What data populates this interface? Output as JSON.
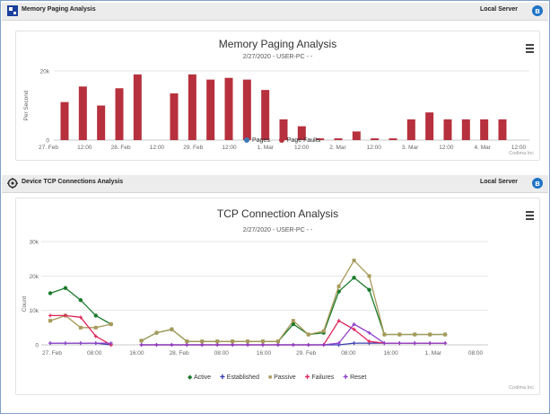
{
  "panels": [
    {
      "title": "Memory Paging Analysis",
      "server": "Local Server",
      "icon": "memory-chip-icon"
    },
    {
      "title": "Device TCP Connections Analysis",
      "server": "Local Server",
      "icon": "gear-icon"
    }
  ],
  "chart1": {
    "credit": "Codima Inc",
    "menu_icon": "hamburger-menu-icon",
    "chart_data": {
      "type": "bar",
      "title": "Memory Paging Analysis",
      "subtitle": "2/27/2020 - USER-PC - -",
      "ylabel": "Per Second",
      "ylim": [
        0,
        20000
      ],
      "yticks": [
        "0",
        "20k"
      ],
      "xticks": [
        "27. Feb",
        "12:00",
        "28. Feb",
        "12:00",
        "29. Feb",
        "12:00",
        "1. Mar",
        "12:00",
        "2. Mar",
        "12:00",
        "3. Mar",
        "12:00",
        "4. Mar",
        "12:00"
      ],
      "legend": [
        {
          "name": "Pages",
          "color": "#3d7ab3"
        },
        {
          "name": "Page Faults",
          "color": "#b7303d"
        }
      ],
      "series": [
        {
          "name": "Page Faults",
          "color": "#b7303d",
          "values": [
            11000,
            15500,
            10000,
            15000,
            19000,
            0,
            13500,
            19000,
            17500,
            18000,
            17500,
            14500,
            6000,
            4000,
            500,
            500,
            2500,
            500,
            500,
            6000,
            8000,
            6000,
            6000,
            6000,
            6000
          ]
        }
      ]
    }
  },
  "chart2": {
    "credit": "Codima Inc",
    "menu_icon": "hamburger-menu-icon",
    "chart_data": {
      "type": "line",
      "title": "TCP Connection Analysis",
      "subtitle": "2/27/2020 - USER-PC - -",
      "ylabel": "Count",
      "ylim": [
        0,
        30000
      ],
      "yticks": [
        "0",
        "10k",
        "20k",
        "30k"
      ],
      "xticks": [
        "27. Feb",
        "08:00",
        "16:00",
        "28. Feb",
        "08:00",
        "16:00",
        "29. Feb",
        "08:00",
        "16:00",
        "1. Mar",
        "08:00"
      ],
      "legend": [
        {
          "name": "Active",
          "color": "#1a7a2a"
        },
        {
          "name": "Established",
          "color": "#3a3fb5"
        },
        {
          "name": "Passive",
          "color": "#a89a5a"
        },
        {
          "name": "Failures",
          "color": "#e0245a"
        },
        {
          "name": "Reset",
          "color": "#8e3fc8"
        }
      ],
      "x": [
        0,
        3,
        6,
        9,
        12,
        18,
        21,
        24,
        27,
        30,
        33,
        36,
        39,
        42,
        45,
        48,
        51,
        54,
        57,
        60,
        63,
        66,
        69,
        72,
        75,
        78,
        81,
        84
      ],
      "series": [
        {
          "name": "Active",
          "color": "#1a7a2a",
          "values": [
            15000,
            16500,
            13000,
            8500,
            6000,
            1200,
            3500,
            4500,
            1000,
            1000,
            1000,
            1000,
            1000,
            1000,
            1000,
            6000,
            3000,
            3500,
            15500,
            19500,
            16000,
            3000,
            3000,
            3000,
            3000,
            3000,
            null,
            null
          ]
        },
        {
          "name": "Established",
          "color": "#3a3fb5",
          "values": [
            500,
            500,
            500,
            500,
            0,
            0,
            0,
            0,
            0,
            0,
            0,
            0,
            0,
            0,
            0,
            0,
            0,
            0,
            0,
            500,
            500,
            500,
            500,
            500,
            500,
            500,
            null,
            null
          ]
        },
        {
          "name": "Passive",
          "color": "#a89a5a",
          "values": [
            7000,
            8500,
            5000,
            5000,
            6000,
            1200,
            3500,
            4500,
            1000,
            1000,
            1000,
            1000,
            1000,
            1000,
            1000,
            7000,
            3000,
            4000,
            17000,
            24500,
            20000,
            3000,
            3000,
            3000,
            3000,
            3000,
            null,
            null
          ]
        },
        {
          "name": "Failures",
          "color": "#e0245a",
          "values": [
            8500,
            8500,
            8000,
            2500,
            0,
            0,
            0,
            0,
            0,
            0,
            0,
            0,
            0,
            0,
            0,
            0,
            0,
            0,
            7000,
            4500,
            1000,
            500,
            500,
            500,
            500,
            500,
            null,
            null
          ]
        },
        {
          "name": "Reset",
          "color": "#8e3fc8",
          "values": [
            500,
            500,
            500,
            500,
            500,
            0,
            0,
            0,
            0,
            0,
            0,
            0,
            0,
            0,
            0,
            0,
            0,
            0,
            500,
            6000,
            3500,
            500,
            500,
            500,
            500,
            500,
            null,
            null
          ]
        }
      ]
    }
  }
}
